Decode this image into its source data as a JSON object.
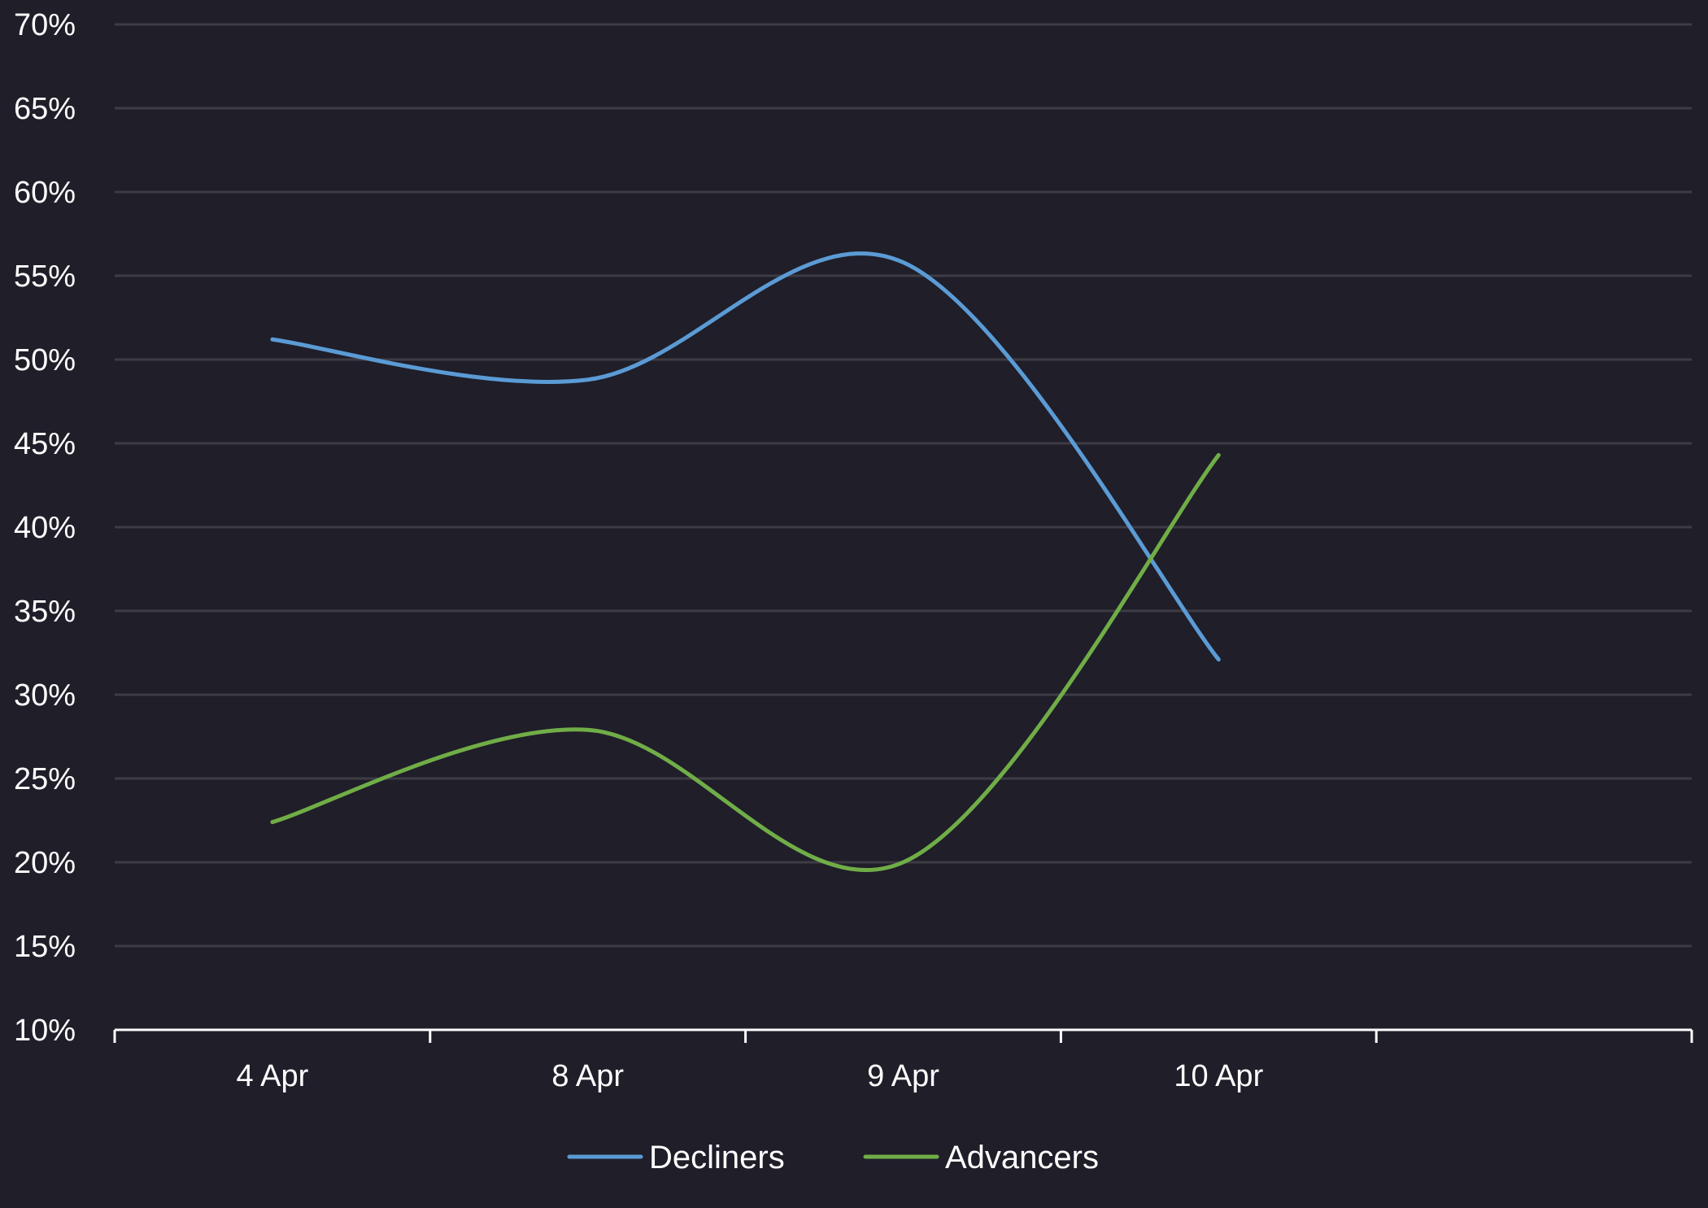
{
  "chart_data": {
    "type": "line",
    "title": "",
    "xlabel": "",
    "ylabel": "",
    "categories": [
      "4 Apr",
      "8 Apr",
      "9 Apr",
      "10 Apr"
    ],
    "series": [
      {
        "name": "Decliners",
        "color": "#5b9bd5",
        "values": [
          51.2,
          48.8,
          55.8,
          32.1
        ]
      },
      {
        "name": "Advancers",
        "color": "#70ad47",
        "values": [
          22.4,
          27.9,
          20.0,
          44.3
        ]
      }
    ],
    "ylim": [
      10,
      70
    ],
    "y_ticks": [
      70,
      65,
      60,
      55,
      50,
      45,
      40,
      35,
      30,
      25,
      20,
      15,
      10
    ],
    "y_tick_format": "{v}%",
    "x_slots": 5,
    "grid": true,
    "smooth": true,
    "legend_position": "bottom",
    "colors": {
      "background": "#1f1e29",
      "gridline": "#3d3c44",
      "axis": "#ffffff",
      "text": "#ffffff"
    }
  }
}
